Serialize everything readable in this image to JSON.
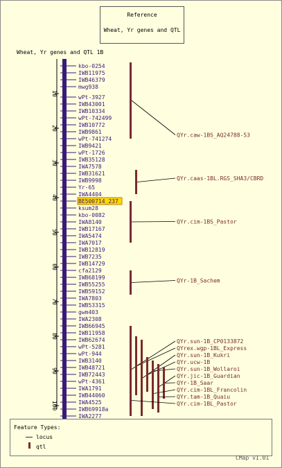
{
  "reference": {
    "label": "Reference",
    "title": "Wheat, Yr genes and QTL"
  },
  "map": {
    "title": "Wheat, Yr genes and QTL 1B",
    "ticks": [
      "10",
      "20",
      "30",
      "40",
      "50",
      "60",
      "70",
      "80",
      "90",
      "100"
    ],
    "markers": [
      {
        "name": "kbo-0254",
        "pos": 2
      },
      {
        "name": "IWB11975",
        "pos": 4
      },
      {
        "name": "IWB46379",
        "pos": 6
      },
      {
        "name": "mwg938",
        "pos": 8
      },
      {
        "name": "wPt-3927",
        "pos": 11
      },
      {
        "name": "IWB43001",
        "pos": 13
      },
      {
        "name": "IWB10334",
        "pos": 15
      },
      {
        "name": "wPt-742499",
        "pos": 17
      },
      {
        "name": "IWB10772",
        "pos": 19
      },
      {
        "name": "IWB9861",
        "pos": 21
      },
      {
        "name": "wPt-741274",
        "pos": 23
      },
      {
        "name": "IWB9421",
        "pos": 25
      },
      {
        "name": "wPt-1726",
        "pos": 27
      },
      {
        "name": "IWB35128",
        "pos": 29
      },
      {
        "name": "IWA7578",
        "pos": 31
      },
      {
        "name": "IWB31621",
        "pos": 33
      },
      {
        "name": "IWB9998",
        "pos": 35
      },
      {
        "name": "Yr-65",
        "pos": 37
      },
      {
        "name": "IWA4404",
        "pos": 39
      },
      {
        "name": "BE500714_237",
        "pos": 41,
        "highlight": true
      },
      {
        "name": "ksum28",
        "pos": 43
      },
      {
        "name": "kbo-0082",
        "pos": 45
      },
      {
        "name": "IWA8140",
        "pos": 47
      },
      {
        "name": "IWB17167",
        "pos": 49
      },
      {
        "name": "IWA5474",
        "pos": 51
      },
      {
        "name": "IWA7017",
        "pos": 53
      },
      {
        "name": "IWB12819",
        "pos": 55
      },
      {
        "name": "IWB7235",
        "pos": 57
      },
      {
        "name": "IWB14729",
        "pos": 59
      },
      {
        "name": "cfa2129",
        "pos": 61
      },
      {
        "name": "IWB68199",
        "pos": 63
      },
      {
        "name": "IWB55255",
        "pos": 65
      },
      {
        "name": "IWB59152",
        "pos": 67
      },
      {
        "name": "IWA7803",
        "pos": 69
      },
      {
        "name": "IWB53315",
        "pos": 71
      },
      {
        "name": "gwm403",
        "pos": 73
      },
      {
        "name": "IWA2308",
        "pos": 75
      },
      {
        "name": "IWB66945",
        "pos": 77
      },
      {
        "name": "IWB11958",
        "pos": 79
      },
      {
        "name": "IWB62674",
        "pos": 81
      },
      {
        "name": "wPt-5281",
        "pos": 83
      },
      {
        "name": "wPt-944",
        "pos": 85
      },
      {
        "name": "IWB3140",
        "pos": 87
      },
      {
        "name": "IWB48721",
        "pos": 89
      },
      {
        "name": "IWB72443",
        "pos": 91
      },
      {
        "name": "wPt-4361",
        "pos": 93
      },
      {
        "name": "IWA1791",
        "pos": 95
      },
      {
        "name": "IWB44060",
        "pos": 97
      },
      {
        "name": "IWA4525",
        "pos": 99
      },
      {
        "name": "IWB69918a",
        "pos": 101
      },
      {
        "name": "IWA2277",
        "pos": 103
      }
    ],
    "qtls": [
      {
        "name": "QYr.caw-1BS_AQ24788-53",
        "start": 1,
        "end": 23,
        "col": 0,
        "label_pos": 22.5
      },
      {
        "name": "QYr.caas-1BL.RGS_SHA3/CBRD",
        "start": 32,
        "end": 39,
        "col": 1,
        "label_pos": 35
      },
      {
        "name": "QYr.cim-1BS_Pastor",
        "start": 41,
        "end": 53,
        "col": 0,
        "label_pos": 47.5
      },
      {
        "name": "QYr-1B_Sachem",
        "start": 61,
        "end": 68,
        "col": 0,
        "label_pos": 64.5
      },
      {
        "name": "QYr.sun-1B_CP0133872",
        "start": 77,
        "end": 102,
        "col": 0,
        "label_pos": 82
      },
      {
        "name": "QYrex.wgp-1BL_Express",
        "start": 80,
        "end": 97,
        "col": 1,
        "label_pos": 84
      },
      {
        "name": "QYr.sun-1B_Kukri",
        "start": 81,
        "end": 103,
        "col": 2,
        "label_pos": 86
      },
      {
        "name": "QYr.ucw-1B",
        "start": 86,
        "end": 96,
        "col": 3,
        "label_pos": 88
      },
      {
        "name": "QYr.sun-1B_Wollaroi",
        "start": 87,
        "end": 93,
        "col": 4,
        "label_pos": 90
      },
      {
        "name": "QYr.jic-1B_Guardian",
        "start": 88,
        "end": 101,
        "col": 5,
        "label_pos": 92
      },
      {
        "name": "QYr-1B_Saar",
        "start": 89,
        "end": 98,
        "col": 6,
        "label_pos": 94
      },
      {
        "name": "QYr.cim-1BL_Francolin",
        "start": 92,
        "end": 101,
        "col": 4,
        "label_pos": 96
      },
      {
        "name": "QYr.tam-1B_Quaiu",
        "start": 93,
        "end": 102,
        "col": 5,
        "label_pos": 98
      },
      {
        "name": "QYr.cim-1BL_Pastor",
        "start": 94,
        "end": 103,
        "col": 0,
        "label_pos": 100
      }
    ]
  },
  "legend": {
    "title": "Feature Types:",
    "locus": "locus",
    "qtl": "qtl"
  },
  "footer": {
    "version": "CMap v1.01"
  },
  "colors": {
    "background": "#FFFFE0",
    "marker": "#3a1a78",
    "qtl": "#7a2a2a",
    "highlight": "#FFD700",
    "axis": "#000000"
  }
}
